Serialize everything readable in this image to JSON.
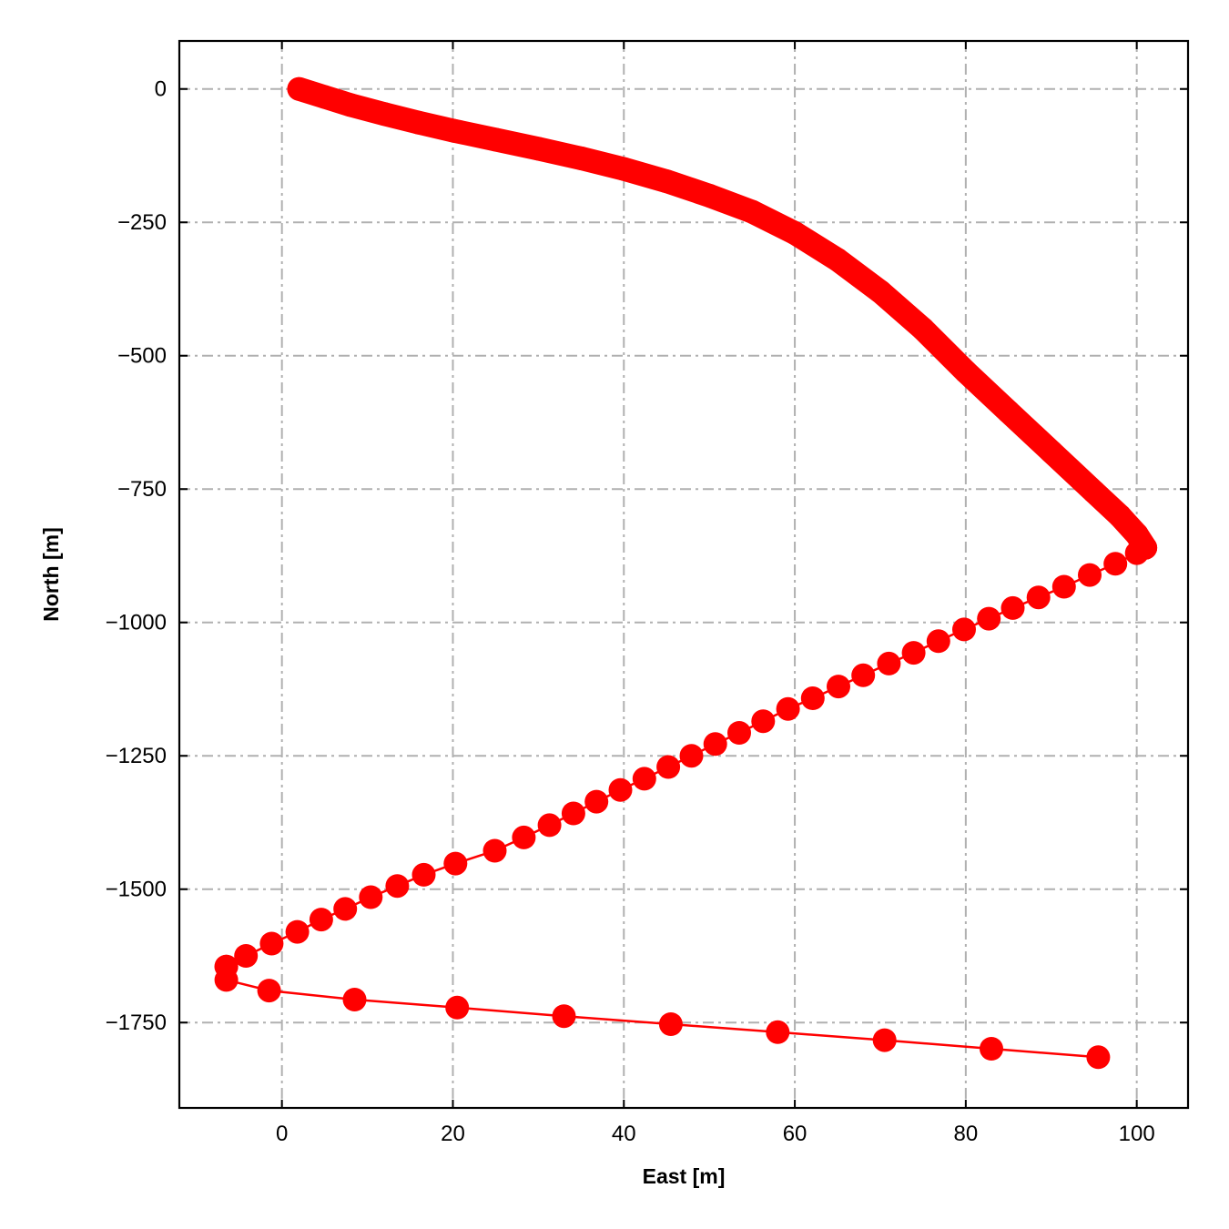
{
  "chart_data": {
    "type": "line",
    "title": "",
    "xlabel": "East [m]",
    "ylabel": "North [m]",
    "xlim": [
      -12,
      106
    ],
    "ylim": [
      -1910,
      90
    ],
    "xticks": [
      0,
      20,
      40,
      60,
      80,
      100
    ],
    "yticks": [
      0,
      -250,
      -500,
      -750,
      -1000,
      -1250,
      -1500,
      -1750
    ],
    "grid": true,
    "tick_direction": "in",
    "series_color": "#ff0000",
    "series": [
      {
        "segment": "dense upper track",
        "marker": "circle",
        "x": [
          2,
          5,
          8,
          12,
          16,
          20,
          25,
          30,
          35,
          40,
          45,
          50,
          55,
          60,
          65,
          70,
          75,
          80,
          85,
          90,
          95,
          98,
          100,
          101
        ],
        "y": [
          0,
          -15,
          -30,
          -47,
          -63,
          -78,
          -95,
          -112,
          -130,
          -150,
          -173,
          -200,
          -230,
          -270,
          -320,
          -380,
          -450,
          -530,
          -605,
          -680,
          -755,
          -800,
          -835,
          -860
        ]
      },
      {
        "segment": "sparse diagonal track",
        "marker": "circle",
        "x": [
          101,
          100,
          97.5,
          94.5,
          91.5,
          88.5,
          85.5,
          82.7,
          79.8,
          76.8,
          73.9,
          71,
          68,
          65.1,
          62.1,
          59.2,
          56.3,
          53.5,
          50.7,
          47.9,
          45.2,
          42.4,
          39.6,
          36.8,
          34.1,
          31.3,
          28.3,
          24.9,
          20.3,
          16.6,
          13.5,
          10.4,
          7.4,
          4.6,
          1.8,
          -1.2,
          -4.2,
          -6.5
        ],
        "y": [
          -860,
          -870,
          -890,
          -911,
          -933,
          -953,
          -973,
          -993,
          -1013,
          -1035,
          -1057,
          -1077,
          -1099,
          -1120,
          -1142,
          -1162,
          -1185,
          -1207,
          -1228,
          -1250,
          -1271,
          -1293,
          -1314,
          -1336,
          -1358,
          -1380,
          -1403,
          -1428,
          -1452,
          -1473,
          -1494,
          -1515,
          -1537,
          -1557,
          -1580,
          -1602,
          -1625,
          -1645
        ]
      },
      {
        "segment": "lower track",
        "marker": "circle",
        "x": [
          -6.5,
          -6.5,
          -1.5,
          8.5,
          20.5,
          33,
          45.5,
          58,
          70.5,
          83,
          95.5
        ],
        "y": [
          -1645,
          -1670,
          -1690,
          -1707,
          -1722,
          -1738,
          -1753,
          -1768,
          -1783,
          -1799,
          -1815
        ]
      }
    ]
  }
}
